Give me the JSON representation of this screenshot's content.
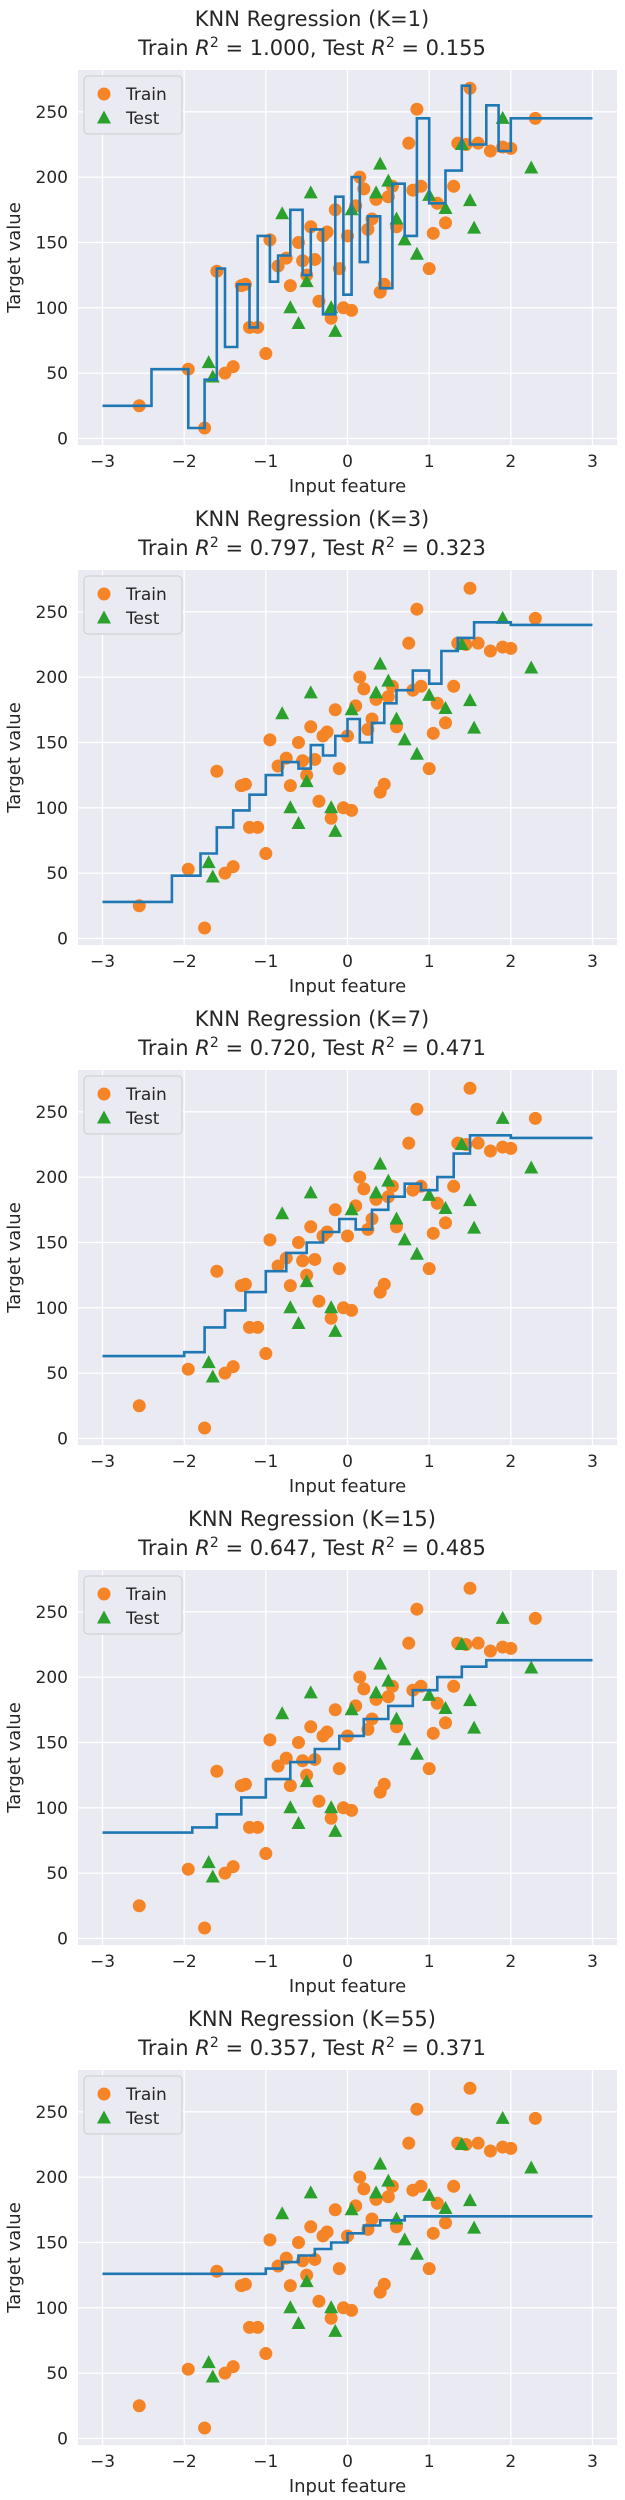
{
  "chart_data": [
    {
      "type": "scatter",
      "title": "KNN Regression (K=1)",
      "subtitle": {
        "train_prefix": "Train ",
        "train_r2": "1.000",
        "test_prefix": "Test ",
        "test_r2": "0.155"
      },
      "xlabel": "Input feature",
      "ylabel": "Target value",
      "legend": [
        "Train",
        "Test"
      ],
      "fit_steps": [
        [
          -3,
          25
        ],
        [
          -2.4,
          25
        ],
        [
          -2.4,
          53
        ],
        [
          -1.95,
          53
        ],
        [
          -1.95,
          8
        ],
        [
          -1.75,
          8
        ],
        [
          -1.75,
          45
        ],
        [
          -1.6,
          45
        ],
        [
          -1.6,
          130
        ],
        [
          -1.5,
          130
        ],
        [
          -1.5,
          70
        ],
        [
          -1.35,
          70
        ],
        [
          -1.35,
          118
        ],
        [
          -1.2,
          118
        ],
        [
          -1.2,
          85
        ],
        [
          -1.1,
          85
        ],
        [
          -1.1,
          155
        ],
        [
          -0.95,
          155
        ],
        [
          -0.95,
          120
        ],
        [
          -0.85,
          120
        ],
        [
          -0.85,
          140
        ],
        [
          -0.7,
          140
        ],
        [
          -0.7,
          175
        ],
        [
          -0.55,
          175
        ],
        [
          -0.55,
          125
        ],
        [
          -0.45,
          125
        ],
        [
          -0.45,
          160
        ],
        [
          -0.3,
          160
        ],
        [
          -0.3,
          95
        ],
        [
          -0.15,
          95
        ],
        [
          -0.15,
          185
        ],
        [
          -0.05,
          185
        ],
        [
          -0.05,
          110
        ],
        [
          0.05,
          110
        ],
        [
          0.05,
          200
        ],
        [
          0.15,
          200
        ],
        [
          0.15,
          135
        ],
        [
          0.25,
          135
        ],
        [
          0.25,
          170
        ],
        [
          0.4,
          170
        ],
        [
          0.4,
          115
        ],
        [
          0.55,
          115
        ],
        [
          0.55,
          195
        ],
        [
          0.7,
          195
        ],
        [
          0.7,
          155
        ],
        [
          0.85,
          155
        ],
        [
          0.85,
          245
        ],
        [
          1.0,
          245
        ],
        [
          1.0,
          180
        ],
        [
          1.2,
          180
        ],
        [
          1.2,
          205
        ],
        [
          1.4,
          205
        ],
        [
          1.4,
          270
        ],
        [
          1.5,
          270
        ],
        [
          1.5,
          225
        ],
        [
          1.7,
          225
        ],
        [
          1.7,
          255
        ],
        [
          1.85,
          255
        ],
        [
          1.85,
          220
        ],
        [
          2.0,
          220
        ],
        [
          2.0,
          245
        ],
        [
          3.0,
          245
        ]
      ]
    },
    {
      "type": "scatter",
      "title": "KNN Regression (K=3)",
      "subtitle": {
        "train_prefix": "Train ",
        "train_r2": "0.797",
        "test_prefix": "Test ",
        "test_r2": "0.323"
      },
      "xlabel": "Input feature",
      "ylabel": "Target value",
      "legend": [
        "Train",
        "Test"
      ],
      "fit_steps": [
        [
          -3,
          28
        ],
        [
          -2.15,
          28
        ],
        [
          -2.15,
          48
        ],
        [
          -1.8,
          48
        ],
        [
          -1.8,
          65
        ],
        [
          -1.6,
          65
        ],
        [
          -1.6,
          85
        ],
        [
          -1.4,
          85
        ],
        [
          -1.4,
          98
        ],
        [
          -1.2,
          98
        ],
        [
          -1.2,
          110
        ],
        [
          -1.0,
          110
        ],
        [
          -1.0,
          125
        ],
        [
          -0.8,
          125
        ],
        [
          -0.8,
          135
        ],
        [
          -0.6,
          135
        ],
        [
          -0.6,
          130
        ],
        [
          -0.45,
          130
        ],
        [
          -0.45,
          148
        ],
        [
          -0.3,
          148
        ],
        [
          -0.3,
          140
        ],
        [
          -0.15,
          140
        ],
        [
          -0.15,
          155
        ],
        [
          0.0,
          155
        ],
        [
          0.0,
          168
        ],
        [
          0.15,
          168
        ],
        [
          0.15,
          150
        ],
        [
          0.3,
          150
        ],
        [
          0.3,
          165
        ],
        [
          0.45,
          165
        ],
        [
          0.45,
          180
        ],
        [
          0.6,
          180
        ],
        [
          0.6,
          190
        ],
        [
          0.8,
          190
        ],
        [
          0.8,
          205
        ],
        [
          1.0,
          205
        ],
        [
          1.0,
          195
        ],
        [
          1.15,
          195
        ],
        [
          1.15,
          220
        ],
        [
          1.35,
          220
        ],
        [
          1.35,
          230
        ],
        [
          1.55,
          230
        ],
        [
          1.55,
          242
        ],
        [
          2.0,
          242
        ],
        [
          2.0,
          240
        ],
        [
          3.0,
          240
        ]
      ]
    },
    {
      "type": "scatter",
      "title": "KNN Regression (K=7)",
      "subtitle": {
        "train_prefix": "Train ",
        "train_r2": "0.720",
        "test_prefix": "Test ",
        "test_r2": "0.471"
      },
      "xlabel": "Input feature",
      "ylabel": "Target value",
      "legend": [
        "Train",
        "Test"
      ],
      "fit_steps": [
        [
          -3,
          63
        ],
        [
          -2.0,
          63
        ],
        [
          -2.0,
          66
        ],
        [
          -1.75,
          66
        ],
        [
          -1.75,
          85
        ],
        [
          -1.5,
          85
        ],
        [
          -1.5,
          98
        ],
        [
          -1.25,
          98
        ],
        [
          -1.25,
          112
        ],
        [
          -1.0,
          112
        ],
        [
          -1.0,
          128
        ],
        [
          -0.75,
          128
        ],
        [
          -0.75,
          142
        ],
        [
          -0.5,
          142
        ],
        [
          -0.5,
          150
        ],
        [
          -0.3,
          150
        ],
        [
          -0.3,
          158
        ],
        [
          -0.1,
          158
        ],
        [
          -0.1,
          168
        ],
        [
          0.1,
          168
        ],
        [
          0.1,
          160
        ],
        [
          0.3,
          160
        ],
        [
          0.3,
          175
        ],
        [
          0.5,
          175
        ],
        [
          0.5,
          185
        ],
        [
          0.7,
          185
        ],
        [
          0.7,
          195
        ],
        [
          0.9,
          195
        ],
        [
          0.9,
          190
        ],
        [
          1.1,
          190
        ],
        [
          1.1,
          200
        ],
        [
          1.3,
          200
        ],
        [
          1.3,
          218
        ],
        [
          1.5,
          218
        ],
        [
          1.5,
          232
        ],
        [
          2.0,
          232
        ],
        [
          2.0,
          230
        ],
        [
          3.0,
          230
        ]
      ]
    },
    {
      "type": "scatter",
      "title": "KNN Regression (K=15)",
      "subtitle": {
        "train_prefix": "Train ",
        "train_r2": "0.647",
        "test_prefix": "Test ",
        "test_r2": "0.485"
      },
      "xlabel": "Input feature",
      "ylabel": "Target value",
      "legend": [
        "Train",
        "Test"
      ],
      "fit_steps": [
        [
          -3,
          81
        ],
        [
          -1.9,
          81
        ],
        [
          -1.9,
          85
        ],
        [
          -1.6,
          85
        ],
        [
          -1.6,
          95
        ],
        [
          -1.3,
          95
        ],
        [
          -1.3,
          108
        ],
        [
          -1.0,
          108
        ],
        [
          -1.0,
          122
        ],
        [
          -0.7,
          122
        ],
        [
          -0.7,
          135
        ],
        [
          -0.4,
          135
        ],
        [
          -0.4,
          145
        ],
        [
          -0.1,
          145
        ],
        [
          -0.1,
          155
        ],
        [
          0.2,
          155
        ],
        [
          0.2,
          168
        ],
        [
          0.5,
          168
        ],
        [
          0.5,
          178
        ],
        [
          0.8,
          178
        ],
        [
          0.8,
          190
        ],
        [
          1.1,
          190
        ],
        [
          1.1,
          200
        ],
        [
          1.4,
          200
        ],
        [
          1.4,
          208
        ],
        [
          1.7,
          208
        ],
        [
          1.7,
          213
        ],
        [
          3.0,
          213
        ]
      ]
    },
    {
      "type": "scatter",
      "title": "KNN Regression (K=55)",
      "subtitle": {
        "train_prefix": "Train ",
        "train_r2": "0.357",
        "test_prefix": "Test ",
        "test_r2": "0.371"
      },
      "xlabel": "Input feature",
      "ylabel": "Target value",
      "legend": [
        "Train",
        "Test"
      ],
      "fit_steps": [
        [
          -3,
          126
        ],
        [
          -1.0,
          126
        ],
        [
          -1.0,
          130
        ],
        [
          -0.8,
          130
        ],
        [
          -0.8,
          135
        ],
        [
          -0.6,
          135
        ],
        [
          -0.6,
          140
        ],
        [
          -0.4,
          140
        ],
        [
          -0.4,
          145
        ],
        [
          -0.2,
          145
        ],
        [
          -0.2,
          150
        ],
        [
          0.0,
          150
        ],
        [
          0.0,
          157
        ],
        [
          0.2,
          157
        ],
        [
          0.2,
          163
        ],
        [
          0.4,
          163
        ],
        [
          0.4,
          167
        ],
        [
          0.7,
          167
        ],
        [
          0.7,
          170
        ],
        [
          3.0,
          170
        ]
      ]
    }
  ],
  "shared": {
    "xlim": [
      -3.3,
      3.3
    ],
    "ylim": [
      -5,
      282
    ],
    "xticks": [
      -3,
      -2,
      -1,
      0,
      1,
      2,
      3
    ],
    "yticks": [
      0,
      50,
      100,
      150,
      200,
      250
    ],
    "train_points": [
      [
        -2.55,
        25
      ],
      [
        -1.95,
        53
      ],
      [
        -1.75,
        8
      ],
      [
        -1.6,
        128
      ],
      [
        -1.5,
        50
      ],
      [
        -1.4,
        55
      ],
      [
        -1.3,
        117
      ],
      [
        -1.25,
        118
      ],
      [
        -1.2,
        85
      ],
      [
        -1.1,
        85
      ],
      [
        -1.0,
        65
      ],
      [
        -0.95,
        152
      ],
      [
        -0.85,
        132
      ],
      [
        -0.75,
        138
      ],
      [
        -0.7,
        117
      ],
      [
        -0.6,
        150
      ],
      [
        -0.55,
        136
      ],
      [
        -0.5,
        125
      ],
      [
        -0.45,
        162
      ],
      [
        -0.4,
        137
      ],
      [
        -0.35,
        105
      ],
      [
        -0.3,
        155
      ],
      [
        -0.25,
        158
      ],
      [
        -0.2,
        92
      ],
      [
        -0.15,
        175
      ],
      [
        -0.1,
        130
      ],
      [
        -0.05,
        100
      ],
      [
        0.0,
        155
      ],
      [
        0.05,
        98
      ],
      [
        0.1,
        178
      ],
      [
        0.15,
        200
      ],
      [
        0.2,
        191
      ],
      [
        0.25,
        160
      ],
      [
        0.3,
        168
      ],
      [
        0.35,
        183
      ],
      [
        0.4,
        112
      ],
      [
        0.45,
        118
      ],
      [
        0.5,
        185
      ],
      [
        0.55,
        193
      ],
      [
        0.6,
        162
      ],
      [
        0.75,
        226
      ],
      [
        0.8,
        190
      ],
      [
        0.85,
        252
      ],
      [
        0.9,
        193
      ],
      [
        1.0,
        130
      ],
      [
        1.05,
        157
      ],
      [
        1.1,
        180
      ],
      [
        1.2,
        165
      ],
      [
        1.3,
        193
      ],
      [
        1.35,
        226
      ],
      [
        1.45,
        225
      ],
      [
        1.5,
        268
      ],
      [
        1.6,
        226
      ],
      [
        1.75,
        220
      ],
      [
        1.9,
        223
      ],
      [
        2.0,
        222
      ],
      [
        2.3,
        245
      ]
    ],
    "test_points": [
      [
        -1.7,
        58
      ],
      [
        -1.65,
        47
      ],
      [
        -0.8,
        172
      ],
      [
        -0.7,
        100
      ],
      [
        -0.6,
        88
      ],
      [
        -0.5,
        120
      ],
      [
        -0.45,
        188
      ],
      [
        -0.2,
        100
      ],
      [
        -0.15,
        82
      ],
      [
        0.05,
        175
      ],
      [
        0.35,
        188
      ],
      [
        0.4,
        210
      ],
      [
        0.5,
        197
      ],
      [
        0.6,
        168
      ],
      [
        0.7,
        152
      ],
      [
        0.85,
        141
      ],
      [
        1.0,
        186
      ],
      [
        1.2,
        176
      ],
      [
        1.4,
        225
      ],
      [
        1.5,
        182
      ],
      [
        1.55,
        161
      ],
      [
        1.9,
        245
      ],
      [
        2.25,
        207
      ]
    ]
  }
}
